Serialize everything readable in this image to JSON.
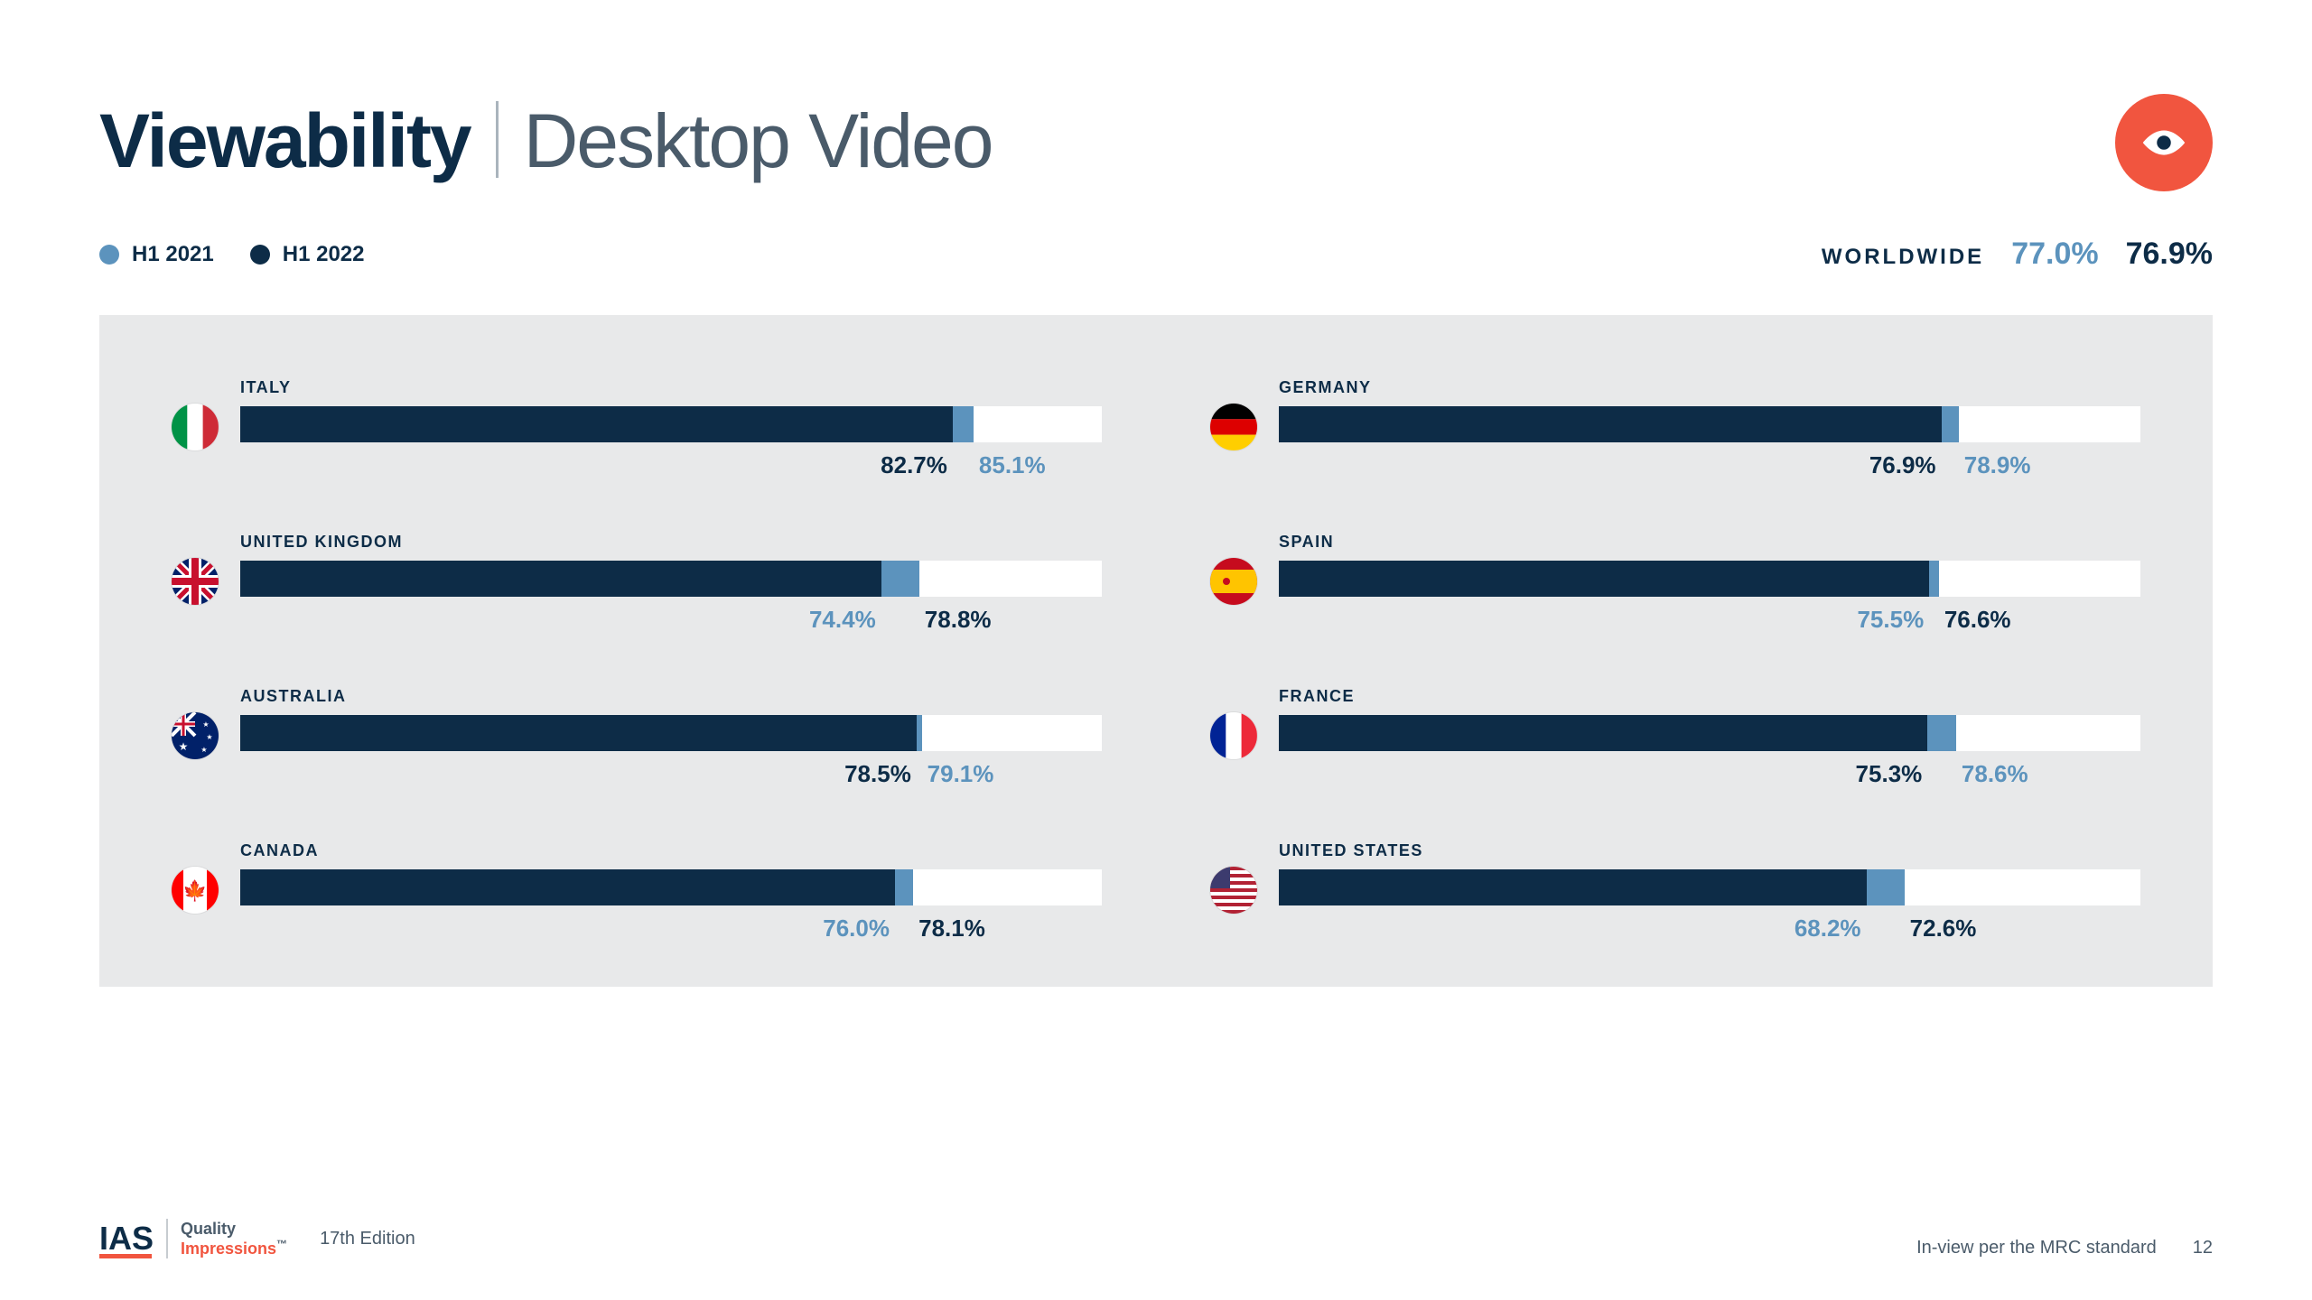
{
  "colors": {
    "dark": "#0d2c47",
    "light": "#5c93bd",
    "accent": "#f1553f",
    "panel_bg": "#e8e9ea",
    "track_bg": "#ffffff"
  },
  "header": {
    "title_bold": "Viewability",
    "title_light": "Desktop Video"
  },
  "legend": {
    "h1_2021": "H1 2021",
    "h1_2022": "H1 2022"
  },
  "worldwide": {
    "label": "WORLDWIDE",
    "h1_2021": "77.0%",
    "h1_2022": "76.9%"
  },
  "chart": {
    "bar_max": 100,
    "value_fontsize": 26,
    "label_gap_pct": 4.5,
    "countries": [
      {
        "name": "ITALY",
        "flag": "it",
        "h1_2021": 85.1,
        "h1_2022": 82.7,
        "label_h1_2021": "85.1%",
        "label_h1_2022": "82.7%"
      },
      {
        "name": "GERMANY",
        "flag": "de",
        "h1_2021": 78.9,
        "h1_2022": 76.9,
        "label_h1_2021": "78.9%",
        "label_h1_2022": "76.9%"
      },
      {
        "name": "UNITED KINGDOM",
        "flag": "gb",
        "h1_2021": 74.4,
        "h1_2022": 78.8,
        "label_h1_2021": "74.4%",
        "label_h1_2022": "78.8%"
      },
      {
        "name": "SPAIN",
        "flag": "es",
        "h1_2021": 75.5,
        "h1_2022": 76.6,
        "label_h1_2021": "75.5%",
        "label_h1_2022": "76.6%"
      },
      {
        "name": "AUSTRALIA",
        "flag": "au",
        "h1_2021": 79.1,
        "h1_2022": 78.5,
        "label_h1_2021": "79.1%",
        "label_h1_2022": "78.5%"
      },
      {
        "name": "FRANCE",
        "flag": "fr",
        "h1_2021": 78.6,
        "h1_2022": 75.3,
        "label_h1_2021": "78.6%",
        "label_h1_2022": "75.3%"
      },
      {
        "name": "CANADA",
        "flag": "ca",
        "h1_2021": 76.0,
        "h1_2022": 78.1,
        "label_h1_2021": "76.0%",
        "label_h1_2022": "78.1%"
      },
      {
        "name": "UNITED STATES",
        "flag": "us",
        "h1_2021": 68.2,
        "h1_2022": 72.6,
        "label_h1_2021": "68.2%",
        "label_h1_2022": "72.6%"
      }
    ]
  },
  "footer": {
    "brand": "IAS",
    "quality_line1": "Quality",
    "quality_line2": "Impressions",
    "edition": "17th Edition",
    "note": "In-view per the MRC standard",
    "page": "12"
  }
}
